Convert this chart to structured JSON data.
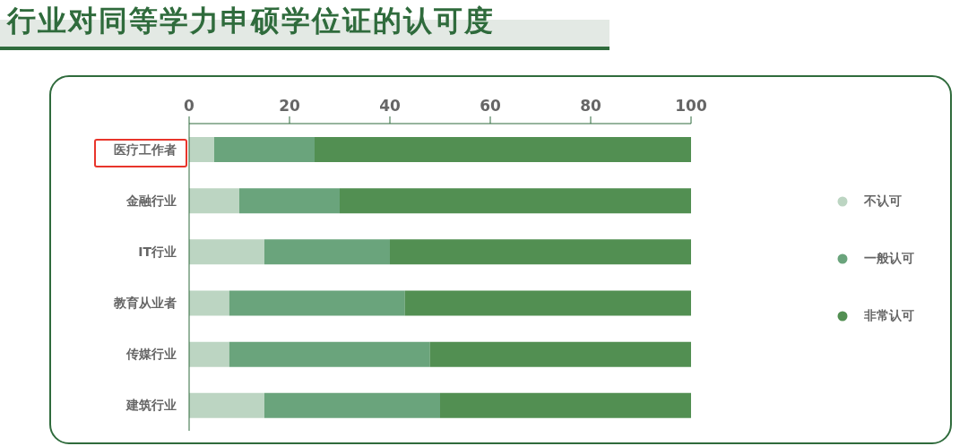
{
  "chart_data": {
    "type": "bar",
    "title": "行业对同等学力申硕学位证的认可度",
    "orientation": "horizontal",
    "stacked": true,
    "categories": [
      "医疗工作者",
      "金融行业",
      "IT行业",
      "教育从业者",
      "传媒行业",
      "建筑行业"
    ],
    "series": [
      {
        "name": "不认可",
        "color": "#bcd5c2",
        "values": [
          5,
          10,
          15,
          8,
          8,
          15
        ]
      },
      {
        "name": "一般认可",
        "color": "#6aa47c",
        "values": [
          20,
          20,
          25,
          35,
          40,
          35
        ]
      },
      {
        "name": "非常认可",
        "color": "#528f52",
        "values": [
          75,
          70,
          60,
          57,
          52,
          50
        ]
      }
    ],
    "xlim": [
      0,
      100
    ],
    "xticks": [
      0,
      20,
      40,
      60,
      80,
      100
    ],
    "grid": false,
    "legend": "right"
  }
}
